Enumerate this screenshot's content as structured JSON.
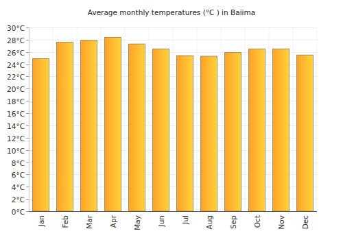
{
  "chart_data": {
    "type": "bar",
    "title": "Average monthly temperatures (°C ) in Baiima",
    "categories": [
      "Jan",
      "Feb",
      "Mar",
      "Apr",
      "May",
      "Jun",
      "Jul",
      "Aug",
      "Sep",
      "Oct",
      "Nov",
      "Dec"
    ],
    "values": [
      24.9,
      27.6,
      27.9,
      28.4,
      27.3,
      26.5,
      25.4,
      25.3,
      25.9,
      26.5,
      26.5,
      25.5
    ],
    "color": "#ffa228",
    "ylim": [
      0,
      30
    ],
    "yticks": [
      {
        "value": 0,
        "label": "0°C"
      },
      {
        "value": 2,
        "label": "2°C"
      },
      {
        "value": 4,
        "label": "4°C"
      },
      {
        "value": 6,
        "label": "6°C"
      },
      {
        "value": 8,
        "label": "8°C"
      },
      {
        "value": 10,
        "label": "10°C"
      },
      {
        "value": 12,
        "label": "12°C"
      },
      {
        "value": 14,
        "label": "14°C"
      },
      {
        "value": 16,
        "label": "16°C"
      },
      {
        "value": 18,
        "label": "18°C"
      },
      {
        "value": 20,
        "label": "20°C"
      },
      {
        "value": 22,
        "label": "22°C"
      },
      {
        "value": 24,
        "label": "24°C"
      },
      {
        "value": 26,
        "label": "26°C"
      },
      {
        "value": 28,
        "label": "28°C"
      },
      {
        "value": 30,
        "label": "30°C"
      }
    ],
    "grid": true
  }
}
